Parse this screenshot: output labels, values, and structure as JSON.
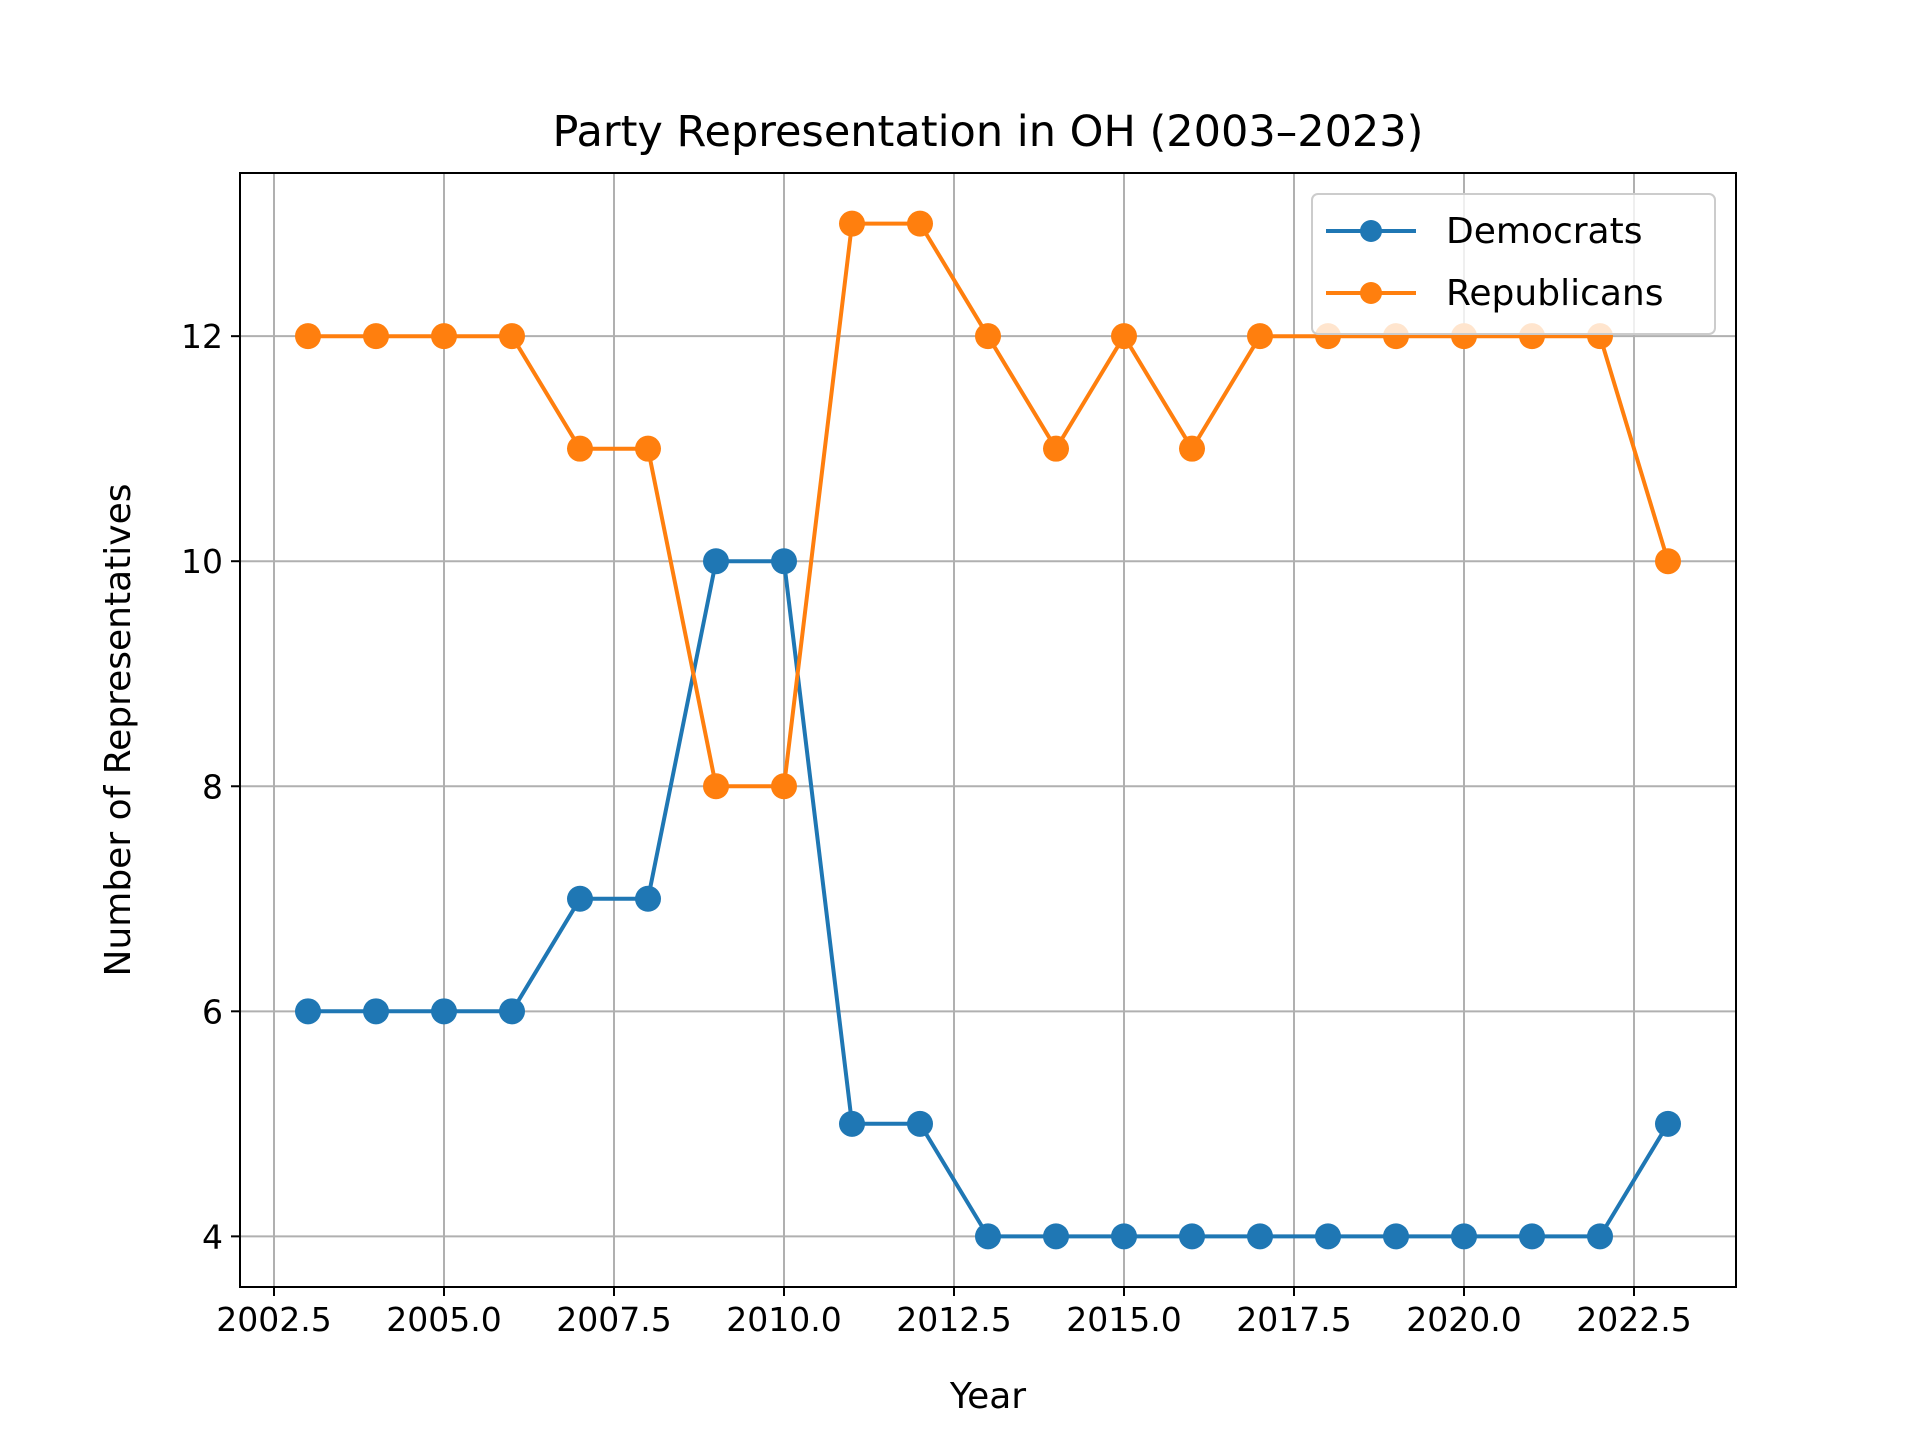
{
  "chart_data": {
    "type": "line",
    "title": "Party Representation in OH (2003–2023)",
    "xlabel": "Year",
    "ylabel": "Number of Representatives",
    "xlim": [
      2002.0,
      2024.0
    ],
    "ylim": [
      3.55,
      13.45
    ],
    "grid": true,
    "legend_position": "top-right",
    "x": [
      2003,
      2004,
      2005,
      2006,
      2007,
      2008,
      2009,
      2010,
      2011,
      2012,
      2013,
      2014,
      2015,
      2016,
      2017,
      2018,
      2019,
      2020,
      2021,
      2022,
      2023
    ],
    "x_ticks": [
      2002.5,
      2005.0,
      2007.5,
      2010.0,
      2012.5,
      2015.0,
      2017.5,
      2020.0,
      2022.5
    ],
    "x_tick_labels": [
      "2002.5",
      "2005.0",
      "2007.5",
      "2010.0",
      "2012.5",
      "2015.0",
      "2017.5",
      "2020.0",
      "2022.5"
    ],
    "y_ticks": [
      4,
      6,
      8,
      10,
      12
    ],
    "y_tick_labels": [
      "4",
      "6",
      "8",
      "10",
      "12"
    ],
    "series": [
      {
        "name": "Democrats",
        "color": "#1f77b4",
        "values": [
          6,
          6,
          6,
          6,
          7,
          7,
          10,
          10,
          5,
          5,
          4,
          4,
          4,
          4,
          4,
          4,
          4,
          4,
          4,
          4,
          5
        ]
      },
      {
        "name": "Republicans",
        "color": "#ff7f0e",
        "values": [
          12,
          12,
          12,
          12,
          11,
          11,
          8,
          8,
          13,
          13,
          12,
          11,
          12,
          11,
          12,
          12,
          12,
          12,
          12,
          12,
          10
        ]
      }
    ]
  }
}
